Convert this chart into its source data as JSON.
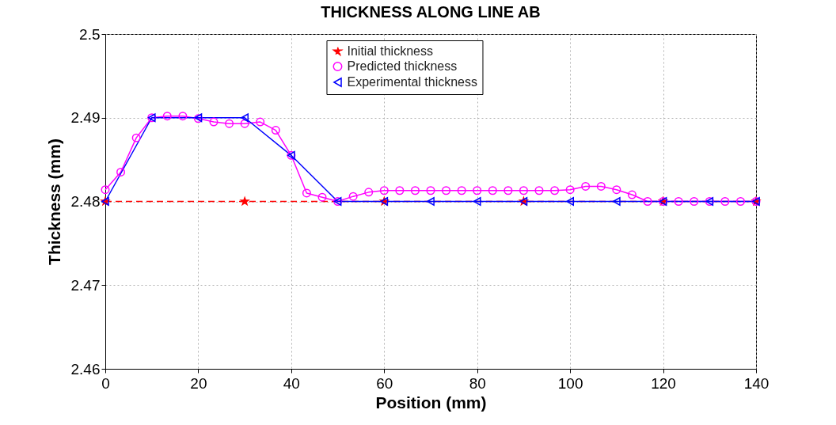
{
  "chart_data": {
    "type": "line",
    "title": "THICKNESS ALONG LINE AB",
    "xlabel": "Position (mm)",
    "ylabel": "Thickness (mm)",
    "xlim": [
      0,
      140
    ],
    "xticks": [
      0,
      20,
      40,
      60,
      80,
      100,
      120,
      140
    ],
    "ylim": [
      2.46,
      2.5
    ],
    "yticks": [
      2.46,
      2.47,
      2.48,
      2.49,
      2.5
    ],
    "grid": true,
    "legend": "top",
    "series": [
      {
        "name": "Initial thickness",
        "color": "#ff0000",
        "marker": "star",
        "line_style": "dashed",
        "x": [
          0,
          30,
          60,
          90,
          120,
          140
        ],
        "values": [
          2.48,
          2.48,
          2.48,
          2.48,
          2.48,
          2.48
        ]
      },
      {
        "name": "Predicted thickness",
        "color": "#ff00ff",
        "marker": "circle",
        "line_style": "solid",
        "x": [
          0,
          3.33,
          6.67,
          10,
          13.33,
          16.67,
          20,
          23.33,
          26.67,
          30,
          33.33,
          36.67,
          40,
          43.33,
          46.67,
          50,
          53.33,
          56.67,
          60,
          63.33,
          66.67,
          70,
          73.33,
          76.67,
          80,
          83.33,
          86.67,
          90,
          93.33,
          96.67,
          100,
          103.33,
          106.67,
          110,
          113.33,
          116.67,
          120,
          123.33,
          126.67,
          130,
          133.33,
          136.67,
          140
        ],
        "values": [
          2.4814,
          2.4835,
          2.4876,
          2.49,
          2.4902,
          2.4902,
          2.4899,
          2.4895,
          2.4893,
          2.4893,
          2.4895,
          2.4885,
          2.4855,
          2.481,
          2.4805,
          2.48,
          2.4806,
          2.4811,
          2.4813,
          2.4813,
          2.4813,
          2.4813,
          2.4813,
          2.4813,
          2.4813,
          2.4813,
          2.4813,
          2.4813,
          2.4813,
          2.4813,
          2.4814,
          2.4818,
          2.4818,
          2.4814,
          2.4808,
          2.48,
          2.48,
          2.48,
          2.48,
          2.48,
          2.48,
          2.48,
          2.48
        ]
      },
      {
        "name": "Experimental thickness",
        "color": "#0000ff",
        "marker": "triangle",
        "line_style": "solid",
        "x": [
          0,
          10,
          20,
          30,
          40,
          50,
          60,
          70,
          80,
          90,
          100,
          110,
          120,
          130,
          140
        ],
        "values": [
          2.48,
          2.49,
          2.49,
          2.49,
          2.4855,
          2.48,
          2.48,
          2.48,
          2.48,
          2.48,
          2.48,
          2.48,
          2.48,
          2.48,
          2.48
        ]
      }
    ]
  }
}
